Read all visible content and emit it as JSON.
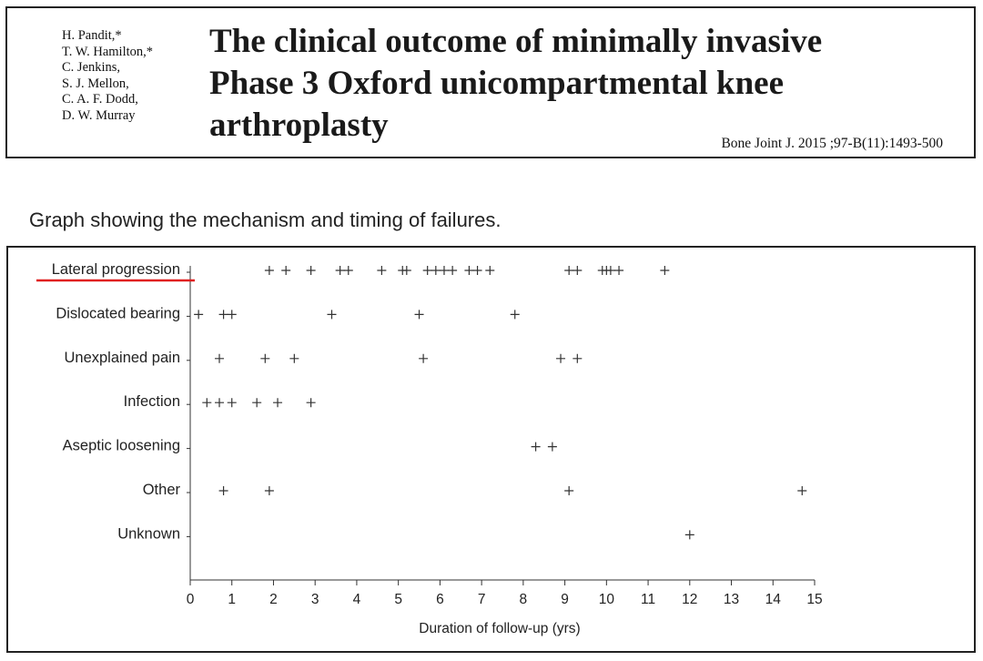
{
  "paper": {
    "authors": [
      "H. Pandit,*",
      "T. W. Hamilton,*",
      "C. Jenkins,",
      "S. J. Mellon,",
      "C. A. F. Dodd,",
      "D. W. Murray"
    ],
    "title_lines": [
      "The clinical outcome of minimally invasive",
      "Phase 3 Oxford unicompartmental knee",
      "arthroplasty"
    ],
    "citation": "Bone Joint J.  2015 ;97-B(11):1493-500"
  },
  "figure_caption": "Graph showing the mechanism and timing of failures.",
  "highlight_color": "#e02020",
  "chart_data": {
    "type": "scatter",
    "marker": "+",
    "xlabel": "Duration of follow-up (yrs)",
    "ylabel": "",
    "xlim": [
      0,
      15
    ],
    "xticks": [
      0,
      1,
      2,
      3,
      4,
      5,
      6,
      7,
      8,
      9,
      10,
      11,
      12,
      13,
      14,
      15
    ],
    "grid": false,
    "highlighted_category": "Lateral progression",
    "categories": [
      "Lateral progression",
      "Dislocated bearing",
      "Unexplained pain",
      "Infection",
      "Aseptic loosening",
      "Other",
      "Unknown"
    ],
    "series": [
      {
        "category": "Lateral progression",
        "x": [
          1.9,
          2.3,
          2.9,
          3.6,
          3.8,
          4.6,
          5.1,
          5.2,
          5.7,
          5.9,
          6.1,
          6.3,
          6.7,
          6.9,
          7.2,
          9.1,
          9.3,
          9.9,
          10.0,
          10.1,
          10.3,
          11.4
        ]
      },
      {
        "category": "Dislocated bearing",
        "x": [
          0.2,
          0.8,
          1.0,
          3.4,
          5.5,
          7.8
        ]
      },
      {
        "category": "Unexplained pain",
        "x": [
          0.7,
          1.8,
          2.5,
          5.6,
          8.9,
          9.3
        ]
      },
      {
        "category": "Infection",
        "x": [
          0.4,
          0.7,
          1.0,
          1.6,
          2.1,
          2.9
        ]
      },
      {
        "category": "Aseptic loosening",
        "x": [
          8.3,
          8.7
        ]
      },
      {
        "category": "Other",
        "x": [
          0.8,
          1.9,
          9.1,
          14.7
        ]
      },
      {
        "category": "Unknown",
        "x": [
          12.0
        ]
      }
    ]
  }
}
